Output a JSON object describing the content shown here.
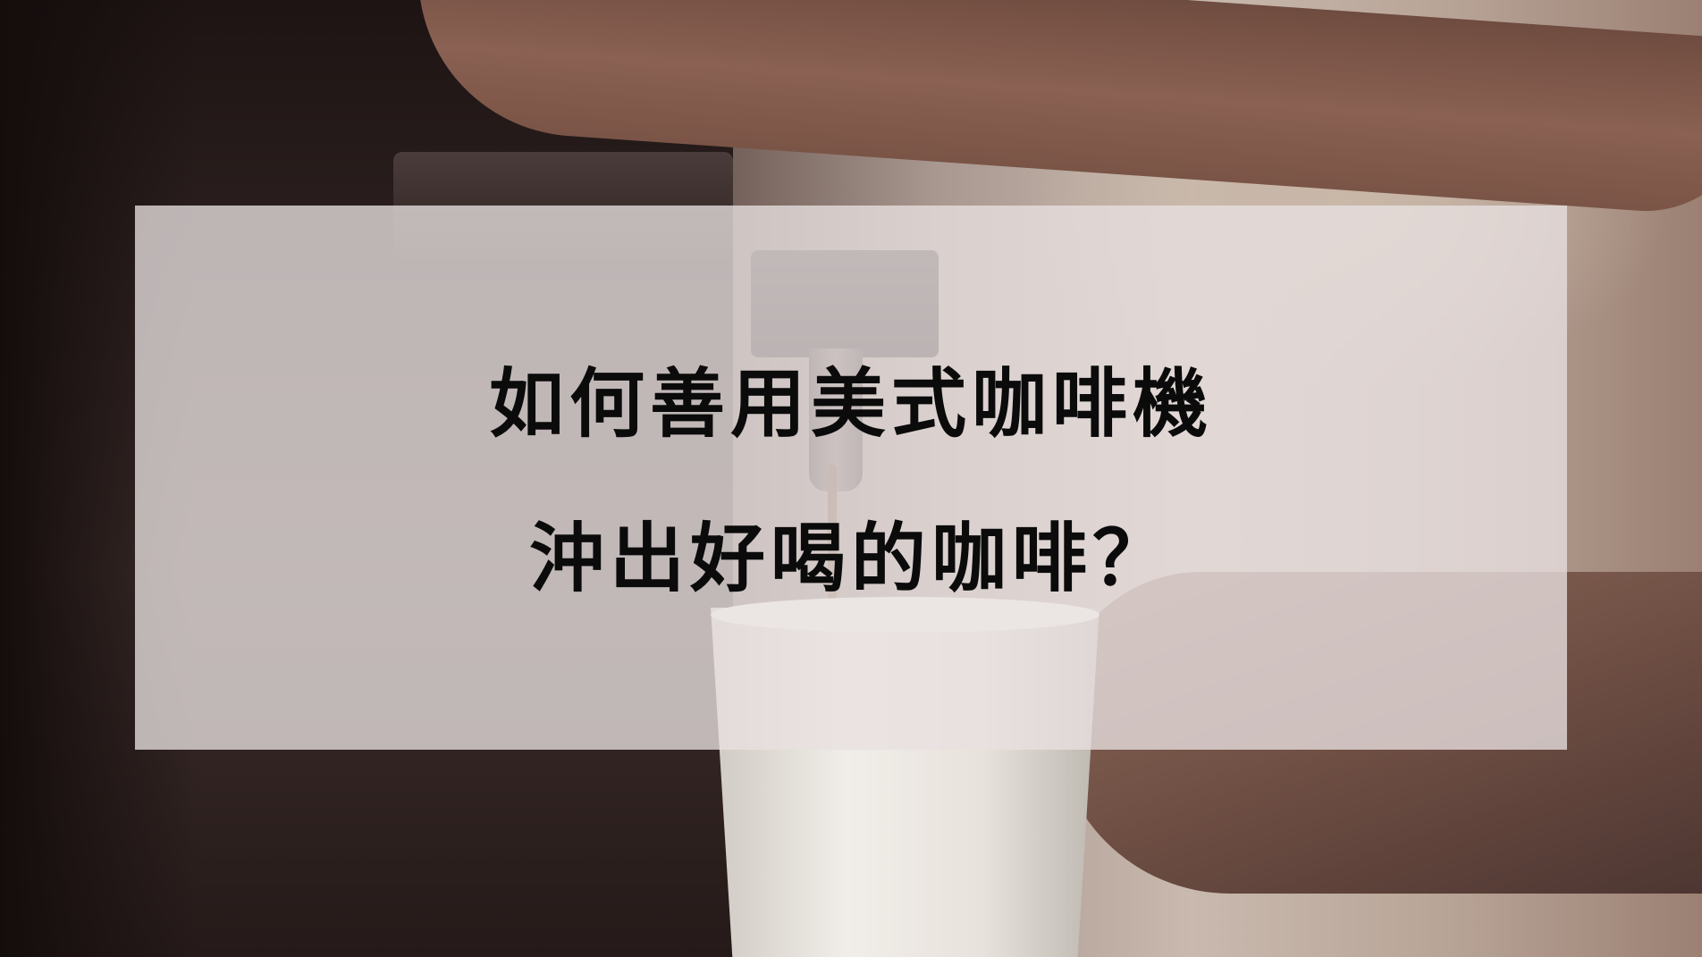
{
  "headline": {
    "line1": "如何善用美式咖啡機",
    "line2": "沖出好喝的咖啡？"
  }
}
